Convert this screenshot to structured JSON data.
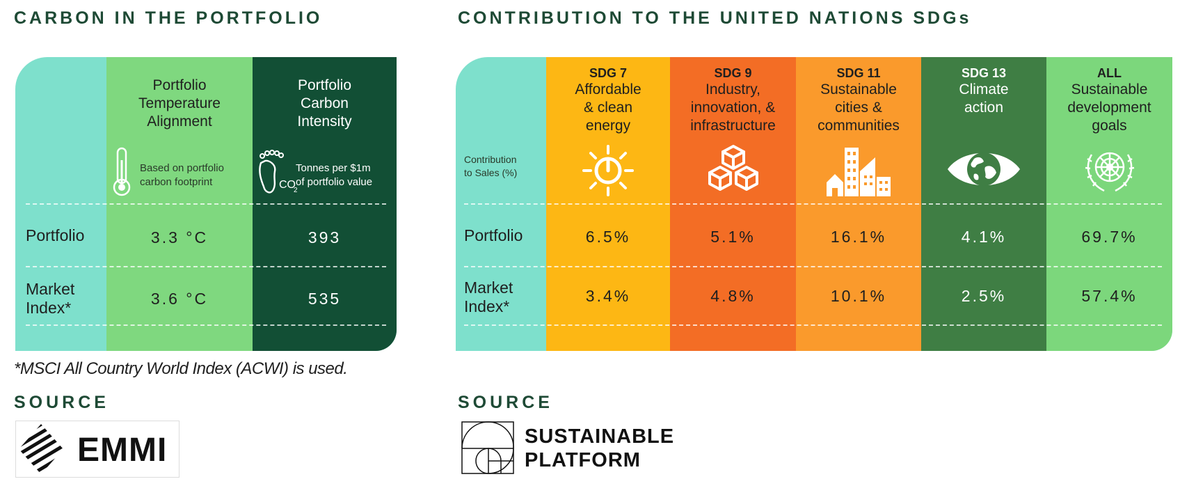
{
  "carbon": {
    "title": "CARBON IN THE PORTFOLIO",
    "columns": [
      {
        "label_lines": [
          "Portfolio",
          "Temperature",
          "Alignment"
        ],
        "note_lines": [
          "Based on portfolio",
          "carbon footprint"
        ],
        "icon": "thermometer-icon"
      },
      {
        "label_lines": [
          "Portfolio",
          "Carbon",
          "Intensity"
        ],
        "note_lines": [
          "Tonnes per $1m",
          "of portfolio value"
        ],
        "icon": "carbon-footprint-icon"
      }
    ],
    "rows": [
      {
        "label_lines": [
          "Portfolio"
        ],
        "values": [
          "3.3 °C",
          "393"
        ]
      },
      {
        "label_lines": [
          "Market",
          "Index*"
        ],
        "values": [
          "3.6 °C",
          "535"
        ]
      }
    ],
    "footnote": "*MSCI All Country World Index (ACWI) is used.",
    "source_label": "SOURCE",
    "source_logo_text": "EMMI"
  },
  "sdg": {
    "title": "CONTRIBUTION TO THE UNITED NATIONS SDGs",
    "row_header_lines": [
      "Contribution",
      "to Sales (%)"
    ],
    "columns": [
      {
        "code": "SDG 7",
        "label_lines": [
          "Affordable",
          "& clean",
          "energy"
        ],
        "icon": "sun-power-icon",
        "color": "#fdb714"
      },
      {
        "code": "SDG 9",
        "label_lines": [
          "Industry,",
          "innovation, &",
          "infrastructure"
        ],
        "icon": "cubes-icon",
        "color": "#f36d25"
      },
      {
        "code": "SDG 11",
        "label_lines": [
          "Sustainable",
          "cities &",
          "communities"
        ],
        "icon": "city-icon",
        "color": "#fa9a2c"
      },
      {
        "code": "SDG 13",
        "label_lines": [
          "Climate",
          "action"
        ],
        "icon": "eye-globe-icon",
        "color": "#3f7e44"
      },
      {
        "code": "ALL",
        "label_lines": [
          "Sustainable",
          "development",
          "goals"
        ],
        "icon": "un-emblem-icon",
        "color": "#7cd77c"
      }
    ],
    "rows": [
      {
        "label_lines": [
          "Portfolio"
        ],
        "values": [
          "6.5%",
          "5.1%",
          "16.1%",
          "4.1%",
          "69.7%"
        ]
      },
      {
        "label_lines": [
          "Market",
          "Index*"
        ],
        "values": [
          "3.4%",
          "4.8%",
          "10.1%",
          "2.5%",
          "57.4%"
        ]
      }
    ],
    "source_label": "SOURCE",
    "source_logo_lines": [
      "SUSTAINABLE",
      "PLATFORM"
    ]
  }
}
